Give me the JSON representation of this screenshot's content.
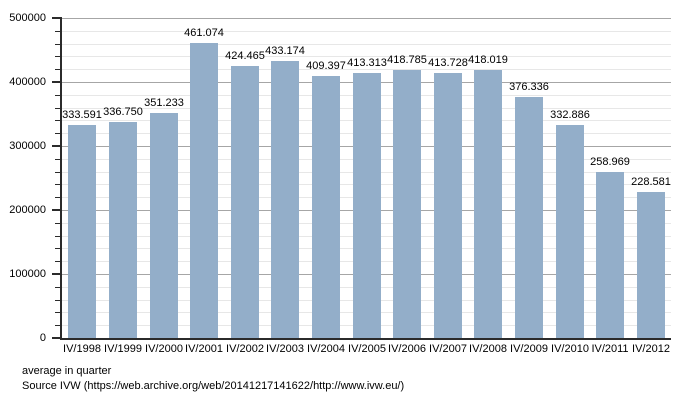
{
  "chart_data": {
    "type": "bar",
    "categories": [
      "IV/1998",
      "IV/1999",
      "IV/2000",
      "IV/2001",
      "IV/2002",
      "IV/2003",
      "IV/2004",
      "IV/2005",
      "IV/2006",
      "IV/2007",
      "IV/2008",
      "IV/2009",
      "IV/2010",
      "IV/2011",
      "IV/2012"
    ],
    "values": [
      333591,
      336750,
      351233,
      461074,
      424465,
      433174,
      409397,
      413313,
      418785,
      413728,
      418019,
      376336,
      332886,
      258969,
      228581
    ],
    "value_labels": [
      "333.591",
      "336.750",
      "351.233",
      "461.074",
      "424.465",
      "433.174",
      "409.397",
      "413.313",
      "418.785",
      "413.728",
      "418.019",
      "376.336",
      "332.886",
      "258.969",
      "228.581"
    ],
    "title": "",
    "xlabel": "",
    "ylabel": "",
    "ylim": [
      0,
      500000
    ],
    "y_major_step": 100000,
    "y_minor_step": 20000,
    "y_tick_labels": [
      "0",
      "100000",
      "200000",
      "300000",
      "400000",
      "500000"
    ],
    "grid": "on",
    "legend": "none"
  },
  "colors": {
    "bar": "#93AEC9",
    "grid_major": "#a6a6a6",
    "grid_minor": "#e7e7e7",
    "axis": "#2b2b2b",
    "background": "#ffffff",
    "text": "#000000"
  },
  "footer": {
    "note": "average in quarter",
    "source": "Source IVW (https://web.archive.org/web/20141217141622/http://www.ivw.eu/)"
  }
}
